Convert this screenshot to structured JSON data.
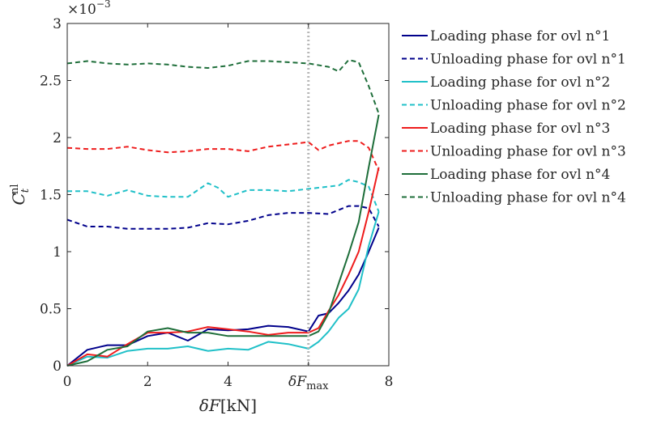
{
  "chart_data": {
    "type": "line",
    "title": "",
    "xlabel": "δF[kN]",
    "ylabel": "C_t^nl",
    "y_exponent_label": "×10−3",
    "xlim": [
      0,
      8
    ],
    "ylim": [
      0,
      3
    ],
    "y_scale_factor": 0.001,
    "xticks": [
      0,
      2,
      4,
      6,
      8
    ],
    "xtick_labels": [
      "0",
      "2",
      "4",
      "δFmax",
      "8"
    ],
    "yticks": [
      0,
      0.5,
      1,
      1.5,
      2,
      2.5,
      3
    ],
    "ytick_labels": [
      "0",
      "0.5",
      "1",
      "1.5",
      "2",
      "2.5",
      "3"
    ],
    "vertical_marker": {
      "x": 6,
      "label": "δFmax",
      "color": "#b8b8b8",
      "style": "dotted"
    },
    "grid": false,
    "legend_position": "outside-right",
    "series": [
      {
        "name": "Loading phase for ovl n°1",
        "color": "#00008b",
        "style": "solid",
        "x": [
          0,
          0.5,
          1,
          1.5,
          2,
          2.5,
          3,
          3.5,
          4,
          4.5,
          5,
          5.5,
          6,
          6.25,
          6.5,
          6.75,
          7,
          7.25,
          7.5,
          7.75
        ],
        "y": [
          0,
          0.14,
          0.18,
          0.18,
          0.26,
          0.29,
          0.22,
          0.32,
          0.31,
          0.32,
          0.35,
          0.34,
          0.3,
          0.44,
          0.46,
          0.55,
          0.66,
          0.8,
          1.0,
          1.21
        ]
      },
      {
        "name": "Unloading phase for ovl n°1",
        "color": "#00008b",
        "style": "dashed",
        "x": [
          0,
          0.5,
          1,
          1.5,
          2,
          2.5,
          3,
          3.5,
          4,
          4.5,
          5,
          5.5,
          6,
          6.5,
          7,
          7.25,
          7.5,
          7.75
        ],
        "y": [
          1.28,
          1.22,
          1.22,
          1.2,
          1.2,
          1.2,
          1.21,
          1.25,
          1.24,
          1.27,
          1.32,
          1.34,
          1.34,
          1.33,
          1.4,
          1.4,
          1.38,
          1.22
        ]
      },
      {
        "name": "Loading phase for ovl n°2",
        "color": "#20c0c8",
        "style": "solid",
        "x": [
          0,
          0.5,
          1,
          1.5,
          2,
          2.5,
          3,
          3.5,
          4,
          4.5,
          5,
          5.5,
          6,
          6.25,
          6.5,
          6.75,
          7,
          7.25,
          7.5,
          7.75
        ],
        "y": [
          0,
          0.08,
          0.07,
          0.13,
          0.15,
          0.15,
          0.17,
          0.13,
          0.15,
          0.14,
          0.21,
          0.19,
          0.15,
          0.21,
          0.3,
          0.42,
          0.5,
          0.67,
          1.05,
          1.35
        ]
      },
      {
        "name": "Unloading phase for ovl n°2",
        "color": "#20c0c8",
        "style": "dashed",
        "x": [
          0,
          0.5,
          1,
          1.5,
          2,
          2.5,
          3,
          3.5,
          3.75,
          4,
          4.5,
          5,
          5.5,
          6,
          6.5,
          6.75,
          7,
          7.25,
          7.5,
          7.75
        ],
        "y": [
          1.53,
          1.53,
          1.49,
          1.54,
          1.49,
          1.48,
          1.48,
          1.6,
          1.56,
          1.48,
          1.54,
          1.54,
          1.53,
          1.55,
          1.57,
          1.58,
          1.63,
          1.61,
          1.57,
          1.35
        ]
      },
      {
        "name": "Loading phase for ovl n°3",
        "color": "#ee1c1c",
        "style": "solid",
        "x": [
          0,
          0.5,
          1,
          1.5,
          2,
          2.5,
          3,
          3.5,
          4,
          4.5,
          5,
          5.5,
          6,
          6.25,
          6.5,
          6.75,
          7,
          7.25,
          7.5,
          7.75
        ],
        "y": [
          0,
          0.1,
          0.08,
          0.19,
          0.29,
          0.29,
          0.3,
          0.34,
          0.32,
          0.3,
          0.27,
          0.29,
          0.29,
          0.33,
          0.48,
          0.62,
          0.8,
          1.0,
          1.35,
          1.74
        ]
      },
      {
        "name": "Unloading phase for ovl n°3",
        "color": "#ee1c1c",
        "style": "dashed",
        "x": [
          0,
          0.5,
          1,
          1.5,
          2,
          2.5,
          3,
          3.5,
          4,
          4.5,
          5,
          5.5,
          6,
          6.25,
          6.5,
          7,
          7.25,
          7.5,
          7.75
        ],
        "y": [
          1.91,
          1.9,
          1.9,
          1.92,
          1.89,
          1.87,
          1.88,
          1.9,
          1.9,
          1.88,
          1.92,
          1.94,
          1.96,
          1.89,
          1.93,
          1.97,
          1.97,
          1.91,
          1.71
        ]
      },
      {
        "name": "Loading phase for ovl n°4",
        "color": "#1e6e3a",
        "style": "solid",
        "x": [
          0,
          0.5,
          1,
          1.5,
          2,
          2.5,
          3,
          3.5,
          4,
          4.5,
          5,
          5.5,
          6,
          6.25,
          6.5,
          6.75,
          7,
          7.25,
          7.5,
          7.75
        ],
        "y": [
          0,
          0.04,
          0.14,
          0.17,
          0.3,
          0.33,
          0.29,
          0.29,
          0.26,
          0.26,
          0.26,
          0.26,
          0.26,
          0.3,
          0.46,
          0.72,
          0.98,
          1.26,
          1.74,
          2.2
        ]
      },
      {
        "name": "Unloading phase for ovl n°4",
        "color": "#1e6e3a",
        "style": "dashed",
        "x": [
          0,
          0.5,
          1,
          1.5,
          2,
          2.5,
          3,
          3.5,
          4,
          4.5,
          5,
          5.5,
          6,
          6.5,
          6.75,
          7,
          7.25,
          7.5,
          7.75
        ],
        "y": [
          2.65,
          2.67,
          2.65,
          2.64,
          2.65,
          2.64,
          2.62,
          2.61,
          2.63,
          2.67,
          2.67,
          2.66,
          2.65,
          2.62,
          2.58,
          2.68,
          2.66,
          2.45,
          2.21
        ]
      }
    ]
  }
}
